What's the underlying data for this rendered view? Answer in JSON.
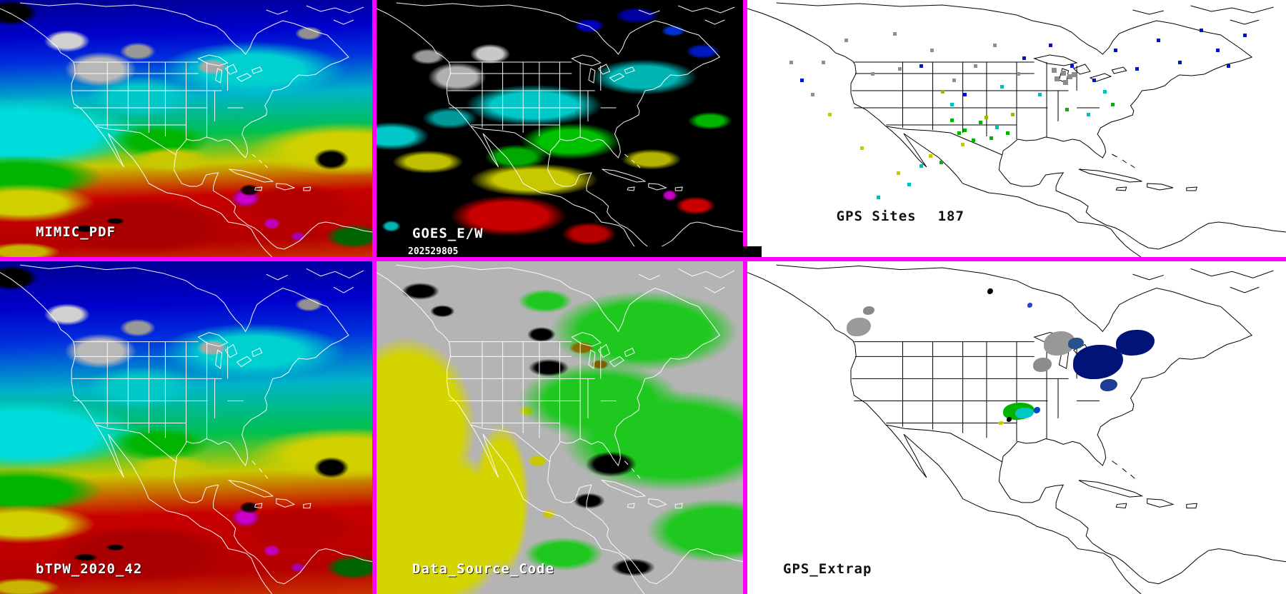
{
  "colors": {
    "panel_border": "#ff00ff",
    "tpw_scale": [
      "#000090",
      "#0000cc",
      "#00c8c8",
      "#00c050",
      "#c8c800",
      "#c80000",
      "#cc00cc"
    ],
    "site_palette": {
      "gray": "#909090",
      "blue": "#0014c8",
      "cyan": "#00bebe",
      "green": "#00b400",
      "yellow": "#c8c800",
      "yellow_green": "#96be00"
    }
  },
  "panels": {
    "mimic": {
      "label": "MIMIC_PDF"
    },
    "goes": {
      "label": "GOES_E/W",
      "timestamp": "202529805"
    },
    "gps_sites": {
      "label": "GPS Sites",
      "count": "187",
      "sites": [
        [
          7.8,
          23.6,
          "#909090"
        ],
        [
          11.8,
          36,
          "#909090"
        ],
        [
          13.8,
          23.6,
          "#909090"
        ],
        [
          18,
          15,
          "#909090"
        ],
        [
          23,
          28,
          "#909090"
        ],
        [
          27,
          12.5,
          "#909090"
        ],
        [
          28,
          26,
          "#909090"
        ],
        [
          34,
          19,
          "#909090"
        ],
        [
          38,
          30.5,
          "#909090"
        ],
        [
          42,
          25,
          "#909090"
        ],
        [
          45.6,
          17,
          "#909090"
        ],
        [
          50,
          28,
          "#909090"
        ],
        [
          56.5,
          26.5,
          "#8c8c8c",
          7
        ],
        [
          58.2,
          27.5,
          "#8c8c8c",
          7
        ],
        [
          59.4,
          29,
          "#8c8c8c",
          7
        ],
        [
          57,
          29.8,
          "#8c8c8c",
          7
        ],
        [
          58.6,
          31,
          "#8c8c8c",
          7
        ],
        [
          60.2,
          28,
          "#8c8c8c",
          7
        ],
        [
          9.8,
          30.5,
          "#0014c8"
        ],
        [
          32,
          25,
          "#0014c8"
        ],
        [
          40,
          36,
          "#0014c8"
        ],
        [
          51,
          22,
          "#0014c8"
        ],
        [
          56,
          17,
          "#0014c8"
        ],
        [
          60,
          25,
          "#0014c8"
        ],
        [
          64,
          30.5,
          "#0014c8"
        ],
        [
          68,
          19,
          "#0014c8"
        ],
        [
          72,
          26,
          "#0014c8"
        ],
        [
          76,
          15,
          "#0014c8"
        ],
        [
          80,
          23.6,
          "#0014c8"
        ],
        [
          84,
          11,
          "#0014c8"
        ],
        [
          87,
          19,
          "#0014c8"
        ],
        [
          89,
          25,
          "#0014c8"
        ],
        [
          92,
          13,
          "#0014c8"
        ],
        [
          37.7,
          40,
          "#00bebe"
        ],
        [
          47,
          33,
          "#00bebe"
        ],
        [
          54,
          36,
          "#00bebe"
        ],
        [
          66,
          35,
          "#00bebe"
        ],
        [
          46,
          49,
          "#00bebe"
        ],
        [
          63,
          44,
          "#00bebe"
        ],
        [
          32,
          64,
          "#00bebe"
        ],
        [
          29.7,
          71,
          "#00bebe"
        ],
        [
          24,
          76,
          "#00bebe"
        ],
        [
          37.7,
          46,
          "#00b400"
        ],
        [
          40,
          50,
          "#00b400"
        ],
        [
          43,
          47,
          "#00b400"
        ],
        [
          45,
          53,
          "#00b400"
        ],
        [
          39,
          51,
          "#00b400"
        ],
        [
          48,
          51,
          "#00b400"
        ],
        [
          59,
          42,
          "#00b400"
        ],
        [
          67.5,
          40,
          "#00b400"
        ],
        [
          35.7,
          62.5,
          "#00b400"
        ],
        [
          41.6,
          54,
          "#00b400"
        ],
        [
          15,
          44,
          "#c8c800"
        ],
        [
          39.6,
          55.5,
          "#c8c800"
        ],
        [
          33.7,
          60,
          "#c8c800"
        ],
        [
          27.7,
          66.7,
          "#c8c800"
        ],
        [
          21,
          57,
          "#c8c800"
        ],
        [
          44,
          45,
          "#96be00"
        ],
        [
          49,
          44,
          "#96be00"
        ],
        [
          36,
          35,
          "#96be00"
        ]
      ]
    },
    "btpw": {
      "label": "bTPW_2020_42"
    },
    "data_source": {
      "label": "Data_Source_Code"
    },
    "gps_extrap": {
      "label": "GPS_Extrap",
      "blobs": [
        [
          18.5,
          17,
          34,
          26,
          "#9a9a9a"
        ],
        [
          21.5,
          13.5,
          16,
          12,
          "#8a8a8a"
        ],
        [
          44.5,
          8.2,
          8,
          8,
          "#000000"
        ],
        [
          52,
          12.5,
          7,
          7,
          "#2846c8"
        ],
        [
          55,
          21,
          44,
          34,
          "#989898"
        ],
        [
          53,
          29,
          26,
          20,
          "#8c8c8c"
        ],
        [
          60.5,
          25,
          70,
          48,
          "#001478"
        ],
        [
          68.5,
          20.5,
          54,
          36,
          "#001478"
        ],
        [
          65.5,
          35.5,
          24,
          17,
          "#1e3c96"
        ],
        [
          59.5,
          23,
          22,
          16,
          "#28508c"
        ],
        [
          47.5,
          42.5,
          44,
          24,
          "#00b400"
        ],
        [
          49.8,
          44,
          26,
          15,
          "#00c8c8"
        ],
        [
          53.2,
          43.8,
          9,
          9,
          "#0046c8"
        ],
        [
          48.2,
          46.8,
          7,
          7,
          "#000000"
        ],
        [
          46.6,
          48,
          8,
          5,
          "#c8c800"
        ]
      ]
    }
  }
}
